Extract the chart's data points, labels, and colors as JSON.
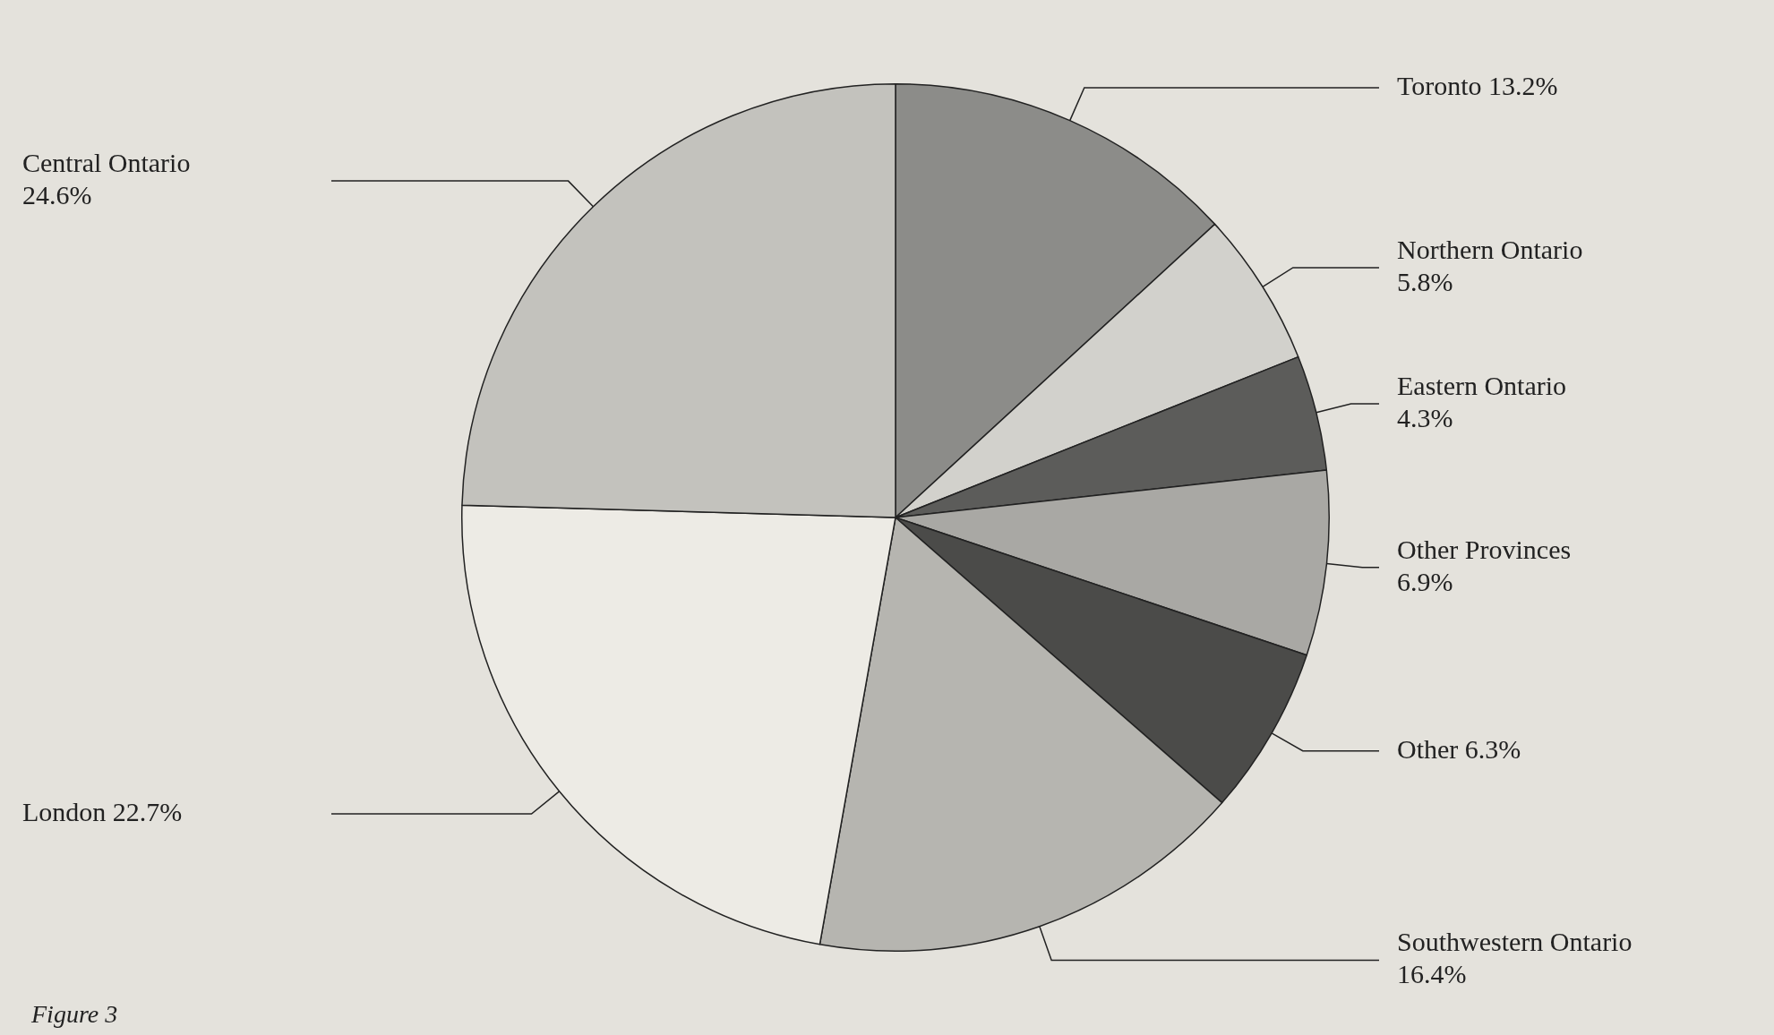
{
  "chart_data": {
    "type": "pie",
    "categories": [
      "Toronto",
      "Northern Ontario",
      "Eastern Ontario",
      "Other Provinces",
      "Other",
      "Southwestern Ontario",
      "London",
      "Central Ontario"
    ],
    "values": [
      13.2,
      5.8,
      4.3,
      6.9,
      6.3,
      16.4,
      22.7,
      24.6
    ],
    "value_labels": [
      "13.2%",
      "5.8%",
      "4.3%",
      "6.9%",
      "6.3%",
      "16.4%",
      "22.7%",
      "24.6%"
    ],
    "colors": [
      "#8c8c89",
      "#d2d1cc",
      "#5c5c5a",
      "#a9a8a4",
      "#4b4b49",
      "#b6b5b0",
      "#edebe5",
      "#c3c2bd"
    ],
    "legend": false,
    "annotations": [
      "Figure 3"
    ]
  }
}
